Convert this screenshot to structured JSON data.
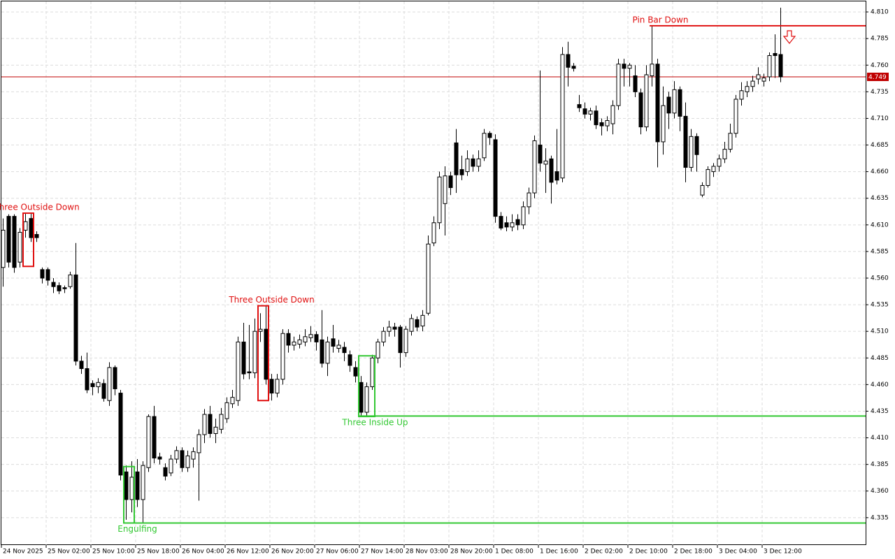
{
  "chart_data": {
    "type": "candlestick",
    "ylim": [
      4.3093,
      4.8212
    ],
    "yticks": [
      {
        "value": 4.81,
        "label": "4.810"
      },
      4.785,
      {
        "value": 4.76,
        "label": "4.760"
      },
      4.735,
      {
        "value": 4.71,
        "label": "4.710"
      },
      4.685,
      {
        "value": 4.66,
        "label": "4.660"
      },
      4.635,
      {
        "value": 4.61,
        "label": "4.610"
      },
      4.585,
      {
        "value": 4.56,
        "label": "4.560"
      },
      4.535,
      {
        "value": 4.51,
        "label": "4.510"
      },
      4.485,
      {
        "value": 4.46,
        "label": "4.460"
      },
      4.435,
      {
        "value": 4.41,
        "label": "4.410"
      },
      4.385,
      {
        "value": 4.36,
        "label": "4.360"
      },
      4.335
    ],
    "grid": true,
    "categories": [
      "24 Nov 2025",
      null,
      null,
      null,
      null,
      null,
      null,
      null,
      "25 Nov 02:00",
      null,
      null,
      null,
      null,
      null,
      null,
      null,
      "25 Nov 10:00",
      null,
      null,
      null,
      null,
      null,
      null,
      null,
      "25 Nov 18:00",
      null,
      null,
      null,
      null,
      null,
      null,
      null,
      "26 Nov 04:00",
      null,
      null,
      null,
      null,
      null,
      null,
      null,
      "26 Nov 12:00",
      null,
      null,
      null,
      null,
      null,
      null,
      null,
      "26 Nov 20:00",
      null,
      null,
      null,
      null,
      null,
      null,
      null,
      "27 Nov 06:00",
      null,
      null,
      null,
      null,
      null,
      null,
      null,
      "27 Nov 14:00",
      null,
      null,
      null,
      null,
      null,
      null,
      null,
      "28 Nov 03:00",
      null,
      null,
      null,
      null,
      null,
      null,
      null,
      "28 Nov 20:00",
      null,
      null,
      null,
      null,
      null,
      null,
      null,
      "1 Dec 08:00",
      null,
      null,
      null,
      null,
      null,
      null,
      null,
      "1 Dec 16:00",
      null,
      null,
      null,
      null,
      null,
      null,
      null,
      "2 Dec 02:00",
      null,
      null,
      null,
      null,
      null,
      null,
      null,
      "2 Dec 10:00",
      null,
      null,
      null,
      null,
      null,
      null,
      null,
      "2 Dec 18:00",
      null,
      null,
      null,
      null,
      null,
      null,
      null,
      "3 Dec 04:00",
      null,
      null,
      null,
      null,
      null,
      null,
      null,
      "3 Dec 12:00",
      null,
      null,
      null
    ],
    "open": [
      4.57,
      4.618,
      4.618,
      4.575,
      4.605,
      4.616,
      4.601,
      4.568,
      4.568,
      4.556,
      4.553,
      4.551,
      4.552,
      4.563,
      4.482,
      4.475,
      4.461,
      4.458,
      4.461,
      4.445,
      4.476,
      4.452,
      4.378,
      4.352,
      4.378,
      4.352,
      4.382,
      4.43,
      4.392,
      4.382,
      4.377,
      4.39,
      4.398,
      4.382,
      4.39,
      4.396,
      4.413,
      4.432,
      4.414,
      4.418,
      4.428,
      4.442,
      4.445,
      4.5,
      4.472,
      4.471,
      4.51,
      4.512,
      4.465,
      4.452,
      4.465,
      4.508,
      4.497,
      4.498,
      4.5,
      4.504,
      4.507,
      4.502,
      4.48,
      4.503,
      4.494,
      4.495,
      4.488,
      4.476,
      4.462,
      4.434,
      4.458,
      4.485,
      4.5,
      4.51,
      4.514,
      4.514,
      4.49,
      4.51,
      4.521,
      4.515,
      4.527,
      4.593,
      4.612,
      4.63,
      4.656,
      4.687,
      4.662,
      4.66,
      4.672,
      4.665,
      4.673,
      4.696,
      4.69,
      4.618,
      4.612,
      4.608,
      4.615,
      4.61,
      4.627,
      4.64,
      4.685,
      4.667,
      4.672,
      4.66,
      4.654,
      4.77,
      4.759,
      4.723,
      4.719,
      4.714,
      4.717,
      4.706,
      4.703,
      4.705,
      4.722,
      4.761,
      4.757,
      4.75,
      4.734,
      4.702,
      4.75,
      4.761,
      4.688,
      4.73,
      4.715,
      4.737,
      4.712,
      4.664,
      4.693,
      4.638,
      4.647,
      4.66,
      4.665,
      4.672,
      4.681,
      4.696,
      4.728,
      4.735,
      4.74,
      4.747,
      4.745,
      4.749,
      4.771,
      4.77
    ],
    "high": [
      4.616,
      4.62,
      4.62,
      4.607,
      4.621,
      4.621,
      4.604,
      4.57,
      4.57,
      4.56,
      4.556,
      4.553,
      4.566,
      4.593,
      4.487,
      4.49,
      4.464,
      4.466,
      4.465,
      4.481,
      4.478,
      4.455,
      4.384,
      4.388,
      4.39,
      4.388,
      4.432,
      4.44,
      4.396,
      4.386,
      4.394,
      4.402,
      4.401,
      4.398,
      4.401,
      4.418,
      4.437,
      4.44,
      4.428,
      4.438,
      4.448,
      4.455,
      4.505,
      4.518,
      4.516,
      4.522,
      4.527,
      4.534,
      4.47,
      4.47,
      4.512,
      4.512,
      4.505,
      4.507,
      4.512,
      4.515,
      4.51,
      4.53,
      4.505,
      4.516,
      4.502,
      4.5,
      4.492,
      4.482,
      4.468,
      4.462,
      4.488,
      4.503,
      4.514,
      4.52,
      4.518,
      4.516,
      4.515,
      4.526,
      4.524,
      4.53,
      4.6,
      4.618,
      4.66,
      4.665,
      4.66,
      4.7,
      4.675,
      4.68,
      4.676,
      4.68,
      4.7,
      4.698,
      4.695,
      4.622,
      4.618,
      4.62,
      4.62,
      4.632,
      4.645,
      4.694,
      4.755,
      4.682,
      4.675,
      4.7,
      4.777,
      4.782,
      4.762,
      4.732,
      4.725,
      4.72,
      4.722,
      4.71,
      4.712,
      4.727,
      4.766,
      4.766,
      4.762,
      4.76,
      4.738,
      4.76,
      4.797,
      4.766,
      4.74,
      4.735,
      4.745,
      4.74,
      4.725,
      4.7,
      4.696,
      4.65,
      4.665,
      4.668,
      4.676,
      4.688,
      4.705,
      4.732,
      4.744,
      4.745,
      4.75,
      4.758,
      4.752,
      4.772,
      4.789,
      4.814
    ],
    "low": [
      4.552,
      4.57,
      4.565,
      4.57,
      4.598,
      4.594,
      4.594,
      4.555,
      4.553,
      4.546,
      4.545,
      4.546,
      4.55,
      4.478,
      4.47,
      4.452,
      4.45,
      4.452,
      4.444,
      4.44,
      4.45,
      4.37,
      4.333,
      4.34,
      4.345,
      4.33,
      4.378,
      4.386,
      4.385,
      4.37,
      4.374,
      4.386,
      4.378,
      4.378,
      4.382,
      4.351,
      4.405,
      4.41,
      4.405,
      4.414,
      4.424,
      4.438,
      4.44,
      4.465,
      4.465,
      4.466,
      4.5,
      4.46,
      4.445,
      4.448,
      4.46,
      4.49,
      4.492,
      4.494,
      4.496,
      4.5,
      4.492,
      4.476,
      4.468,
      4.49,
      4.49,
      4.482,
      4.472,
      4.462,
      4.43,
      4.43,
      4.455,
      4.48,
      4.496,
      4.505,
      4.505,
      4.476,
      4.486,
      4.506,
      4.51,
      4.51,
      4.525,
      4.59,
      4.606,
      4.6,
      4.638,
      4.64,
      4.652,
      4.656,
      4.66,
      4.66,
      4.67,
      4.685,
      4.612,
      4.605,
      4.604,
      4.604,
      4.605,
      4.606,
      4.62,
      4.635,
      4.66,
      4.64,
      4.63,
      4.648,
      4.65,
      4.74,
      4.754,
      4.716,
      4.71,
      4.708,
      4.7,
      4.694,
      4.698,
      4.695,
      4.718,
      4.74,
      4.74,
      4.73,
      4.695,
      4.698,
      4.74,
      4.664,
      4.676,
      4.7,
      4.71,
      4.698,
      4.65,
      4.66,
      4.66,
      4.636,
      4.645,
      4.655,
      4.66,
      4.668,
      4.678,
      4.692,
      4.722,
      4.73,
      4.735,
      4.742,
      4.74,
      4.745,
      4.748,
      4.744
    ],
    "close": [
      4.605,
      4.575,
      4.57,
      4.603,
      4.613,
      4.598,
      4.598,
      4.56,
      4.558,
      4.552,
      4.548,
      4.55,
      4.563,
      4.482,
      4.475,
      4.455,
      4.458,
      4.462,
      4.447,
      4.476,
      4.456,
      4.375,
      4.352,
      4.373,
      4.352,
      4.384,
      4.43,
      4.391,
      4.39,
      4.374,
      4.39,
      4.398,
      4.382,
      4.393,
      4.397,
      4.413,
      4.432,
      4.414,
      4.42,
      4.432,
      4.443,
      4.448,
      4.5,
      4.47,
      4.471,
      4.51,
      4.512,
      4.465,
      4.452,
      4.465,
      4.508,
      4.497,
      4.5,
      4.502,
      4.505,
      4.507,
      4.5,
      4.48,
      4.5,
      4.496,
      4.497,
      4.49,
      4.478,
      4.468,
      4.434,
      4.458,
      4.485,
      4.5,
      4.51,
      4.514,
      4.512,
      4.49,
      4.512,
      4.522,
      4.514,
      4.525,
      4.592,
      4.612,
      4.655,
      4.656,
      4.645,
      4.657,
      4.657,
      4.672,
      4.665,
      4.672,
      4.696,
      4.692,
      4.618,
      4.607,
      4.608,
      4.612,
      4.61,
      4.627,
      4.64,
      4.689,
      4.668,
      4.67,
      4.65,
      4.652,
      4.77,
      4.758,
      4.757,
      4.72,
      4.714,
      4.717,
      4.704,
      4.703,
      4.708,
      4.722,
      4.761,
      4.757,
      4.76,
      4.735,
      4.702,
      4.751,
      4.761,
      4.688,
      4.722,
      4.715,
      4.737,
      4.712,
      4.664,
      4.693,
      4.676,
      4.647,
      4.662,
      4.665,
      4.672,
      4.681,
      4.696,
      4.728,
      4.736,
      4.74,
      4.745,
      4.751,
      4.748,
      4.769,
      4.769,
      4.749
    ],
    "patterns": [
      {
        "label": "Three Outside Down",
        "color": "#e01010",
        "start": 4,
        "end": 5,
        "top": 4.621,
        "bottom": 4.571,
        "position": "above"
      },
      {
        "label": "Three Outside Down",
        "color": "#e01010",
        "start": 46,
        "end": 47,
        "top": 4.534,
        "bottom": 4.445,
        "position": "above"
      },
      {
        "label": "Three Inside Up",
        "color": "#32c832",
        "start": 64,
        "end": 66,
        "top": 4.487,
        "bottom": 4.43,
        "position": "below",
        "level": 4.4305
      },
      {
        "label": "Engulfing",
        "color": "#32c832",
        "start": 22,
        "end": 23,
        "top": 4.383,
        "bottom": 4.33,
        "position": "below",
        "level": 4.33
      },
      {
        "label": "Pin Bar Down",
        "color": "#e01010",
        "start": 116,
        "end": 116,
        "top": 4.797,
        "bottom": 4.797,
        "position": "above",
        "level": 4.797
      }
    ],
    "price_line": 4.749,
    "price_color": "#c00000"
  }
}
